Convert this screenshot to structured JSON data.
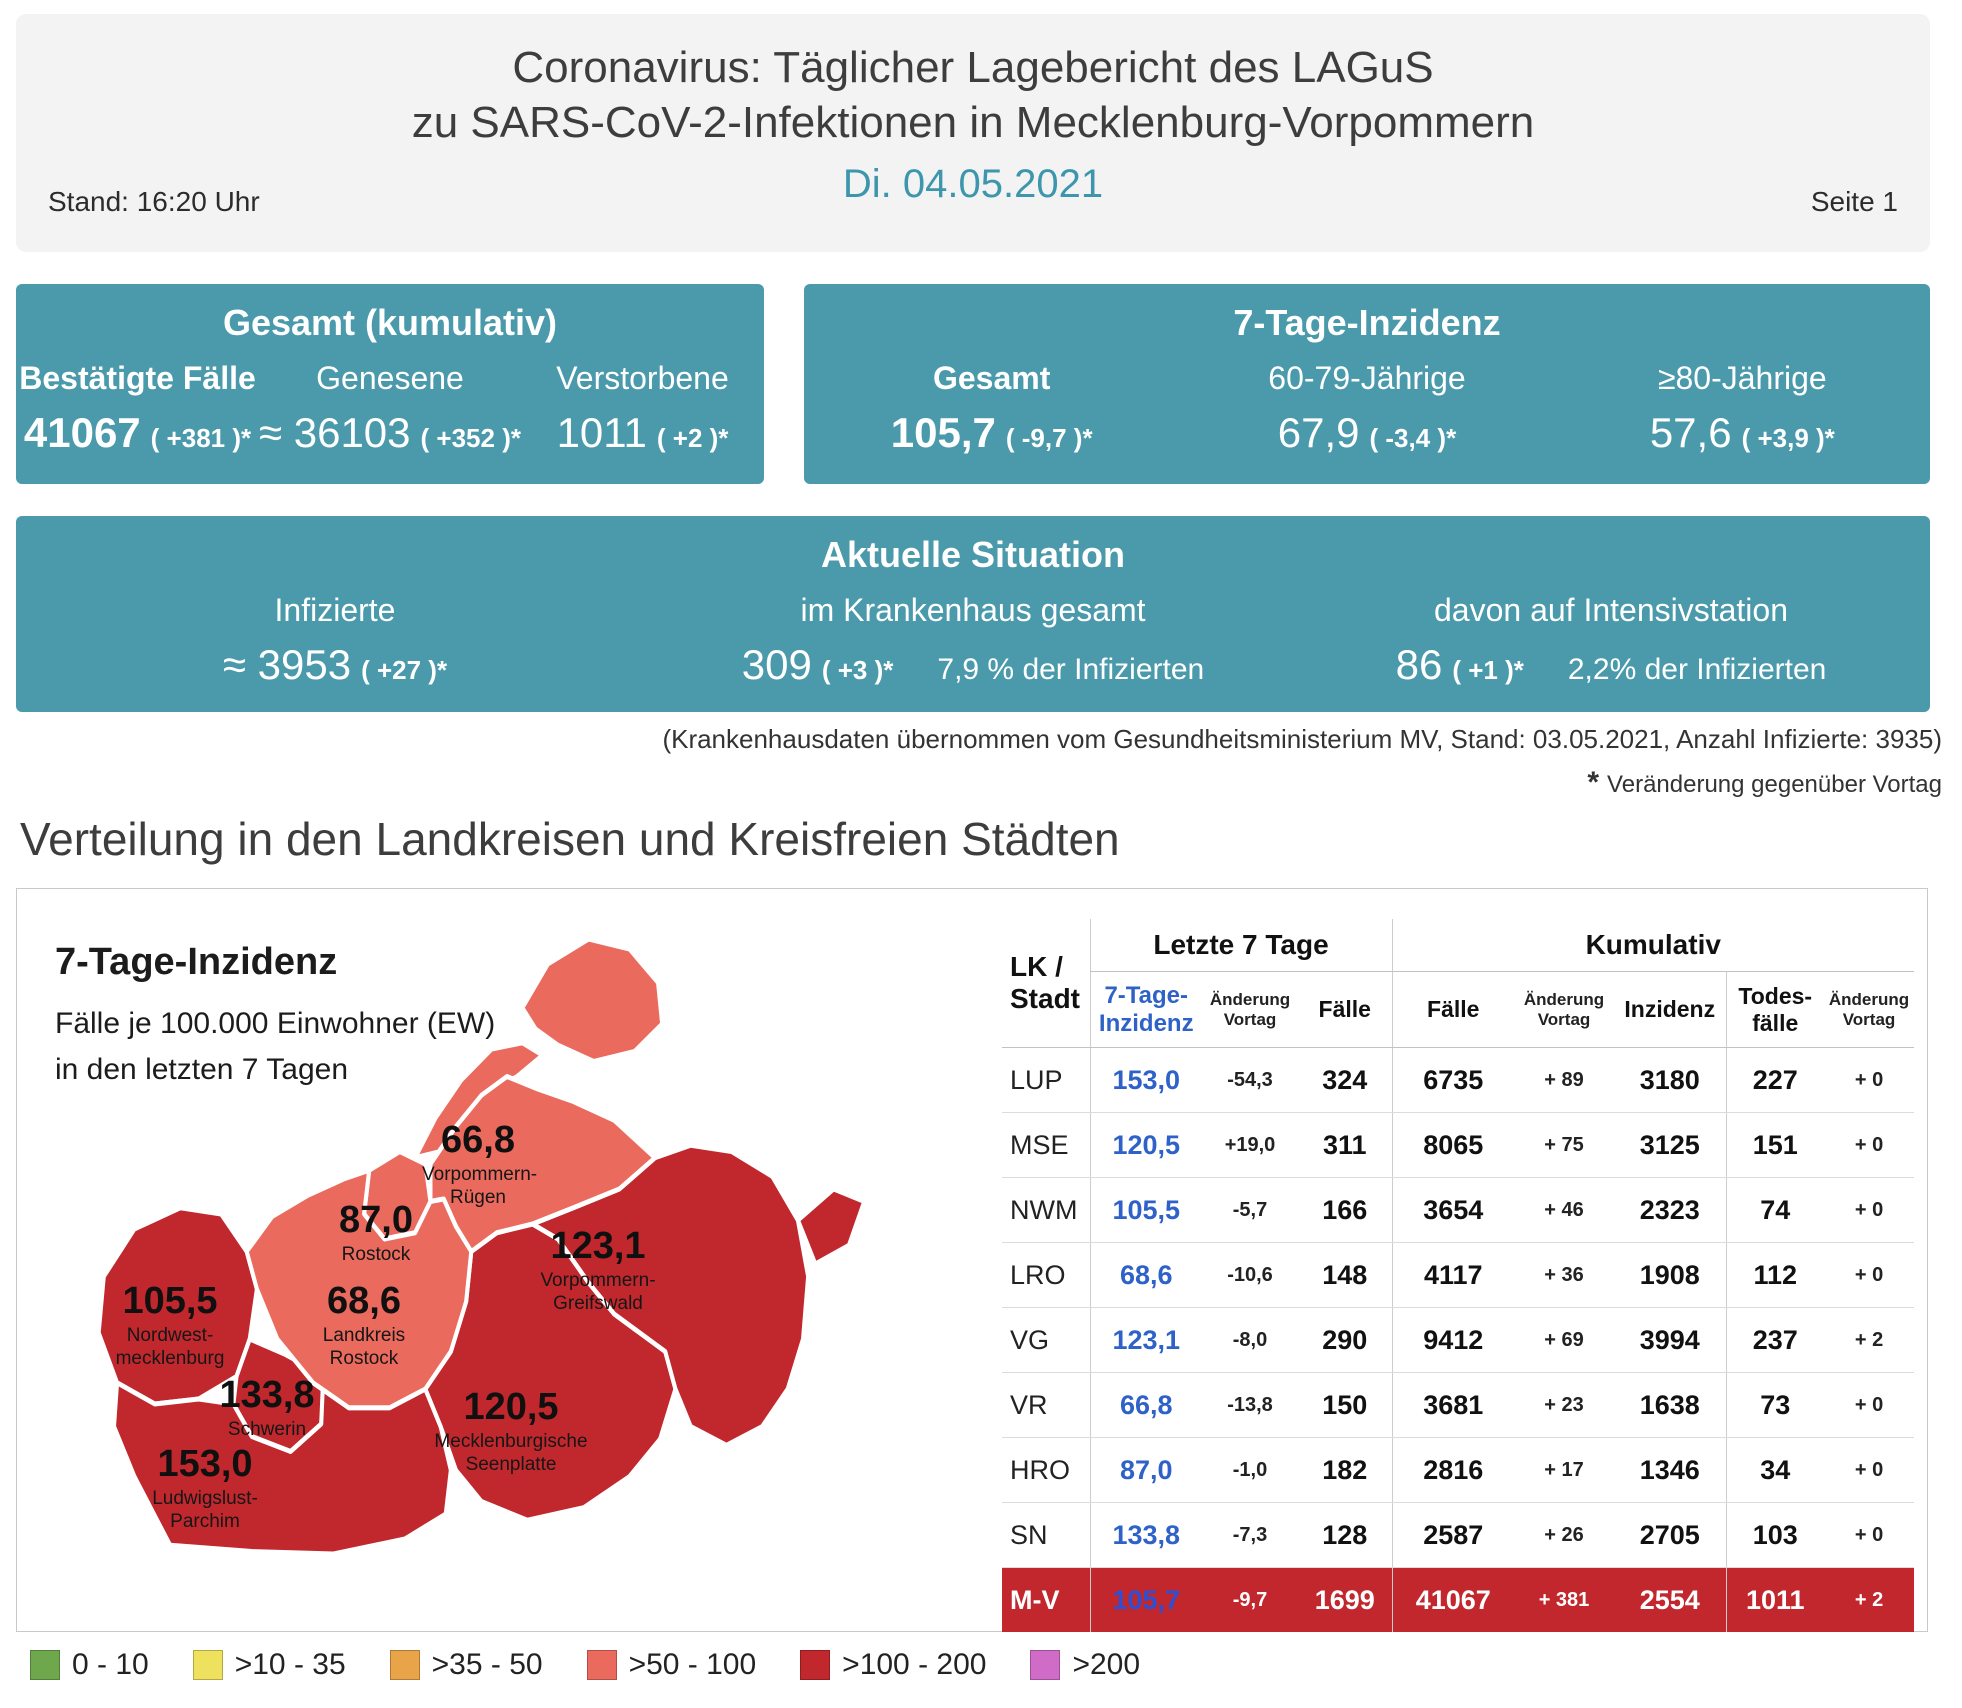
{
  "header": {
    "title_line1": "Coronavirus: Täglicher Lagebericht des LAGuS",
    "title_line2": "zu SARS-CoV-2-Infektionen in Mecklenburg-Vorpommern",
    "date": "Di. 04.05.2021",
    "stand": "Stand: 16:20 Uhr",
    "page": "Seite 1"
  },
  "gesamt_box": {
    "title": "Gesamt (kumulativ)",
    "columns": [
      {
        "label": "Bestätigte Fälle",
        "value": "41067",
        "delta": "( +381 )*"
      },
      {
        "label": "Genesene",
        "value": "≈ 36103",
        "delta": "( +352 )*"
      },
      {
        "label": "Verstorbene",
        "value": "1011",
        "delta": "( +2 )*"
      }
    ]
  },
  "inzidenz_box": {
    "title": "7-Tage-Inzidenz",
    "columns": [
      {
        "label": "Gesamt",
        "value": "105,7",
        "delta": "( -9,7 )*"
      },
      {
        "label": "60-79-Jährige",
        "value": "67,9",
        "delta": "( -3,4 )*"
      },
      {
        "label": "≥80-Jährige",
        "value": "57,6",
        "delta": "( +3,9 )*"
      }
    ]
  },
  "situation_box": {
    "title": "Aktuelle Situation",
    "columns": [
      {
        "label": "Infizierte",
        "value": "≈ 3953",
        "delta": "( +27 )*",
        "extra": ""
      },
      {
        "label": "im Krankenhaus gesamt",
        "value": "309",
        "delta": "( +3 )*",
        "extra": "7,9 % der Infizierten"
      },
      {
        "label": "davon auf Intensivstation",
        "value": "86",
        "delta": "( +1 )*",
        "extra": "2,2% der Infizierten"
      }
    ]
  },
  "footnotes": {
    "hospital": "(Krankenhausdaten übernommen vom Gesundheitsministerium MV, Stand: 03.05.2021, Anzahl Infizierte: 3935)",
    "star": "*",
    "star_text": "Veränderung gegenüber Vortag"
  },
  "section_title": "Verteilung in den Landkreisen und Kreisfreien Städten",
  "map": {
    "title": "7-Tage-Inzidenz",
    "subtitle1": "Fälle je 100.000 Einwohner (EW)",
    "subtitle2": "in den letzten 7 Tagen",
    "regions": [
      {
        "name": "Vorpommern-Rügen",
        "value": "66,8"
      },
      {
        "name": "Rostock",
        "value": "87,0"
      },
      {
        "name": "Vorpommern-Greifswald",
        "value": "123,1"
      },
      {
        "name": "Nordwest-mecklenburg",
        "value": "105,5"
      },
      {
        "name": "Landkreis Rostock",
        "value": "68,6"
      },
      {
        "name": "Schwerin",
        "value": "133,8"
      },
      {
        "name": "Mecklenburgische Seenplatte",
        "value": "120,5"
      },
      {
        "name": "Ludwigslust-Parchim",
        "value": "153,0"
      }
    ]
  },
  "map_colors": {
    "high": "#C0282D",
    "mid": "#EA6A5E"
  },
  "table": {
    "corner": "LK / Stadt",
    "group1": "Letzte 7 Tage",
    "group2": "Kumulativ",
    "subheaders": [
      "7-Tage-Inzidenz",
      "Änderung Vortag",
      "Fälle",
      "Fälle",
      "Änderung Vortag",
      "Inzidenz",
      "Todes-fälle",
      "Änderung Vortag"
    ],
    "rows": [
      {
        "name": "LUP",
        "cells": [
          "153,0",
          "-54,3",
          "324",
          "6735",
          "+ 89",
          "3180",
          "227",
          "+ 0"
        ],
        "highlight": false
      },
      {
        "name": "MSE",
        "cells": [
          "120,5",
          "+19,0",
          "311",
          "8065",
          "+ 75",
          "3125",
          "151",
          "+ 0"
        ],
        "highlight": false
      },
      {
        "name": "NWM",
        "cells": [
          "105,5",
          "-5,7",
          "166",
          "3654",
          "+ 46",
          "2323",
          "74",
          "+ 0"
        ],
        "highlight": false
      },
      {
        "name": "LRO",
        "cells": [
          "68,6",
          "-10,6",
          "148",
          "4117",
          "+ 36",
          "1908",
          "112",
          "+ 0"
        ],
        "highlight": false
      },
      {
        "name": "VG",
        "cells": [
          "123,1",
          "-8,0",
          "290",
          "9412",
          "+ 69",
          "3994",
          "237",
          "+ 2"
        ],
        "highlight": false
      },
      {
        "name": "VR",
        "cells": [
          "66,8",
          "-13,8",
          "150",
          "3681",
          "+ 23",
          "1638",
          "73",
          "+ 0"
        ],
        "highlight": false
      },
      {
        "name": "HRO",
        "cells": [
          "87,0",
          "-1,0",
          "182",
          "2816",
          "+ 17",
          "1346",
          "34",
          "+ 0"
        ],
        "highlight": false
      },
      {
        "name": "SN",
        "cells": [
          "133,8",
          "-7,3",
          "128",
          "2587",
          "+ 26",
          "2705",
          "103",
          "+ 0"
        ],
        "highlight": false
      },
      {
        "name": "M-V",
        "cells": [
          "105,7",
          "-9,7",
          "1699",
          "41067",
          "+ 381",
          "2554",
          "1011",
          "+ 2"
        ],
        "highlight": true
      }
    ]
  },
  "legend": [
    {
      "label": "0 - 10",
      "color": "#6FA84C"
    },
    {
      "label": ">10 - 35",
      "color": "#EEE15E"
    },
    {
      "label": ">35 - 50",
      "color": "#E9A449"
    },
    {
      "label": ">50 - 100",
      "color": "#EA6A5E"
    },
    {
      "label": ">100 - 200",
      "color": "#C0282D"
    },
    {
      "label": ">200",
      "color": "#D16BC8"
    }
  ]
}
